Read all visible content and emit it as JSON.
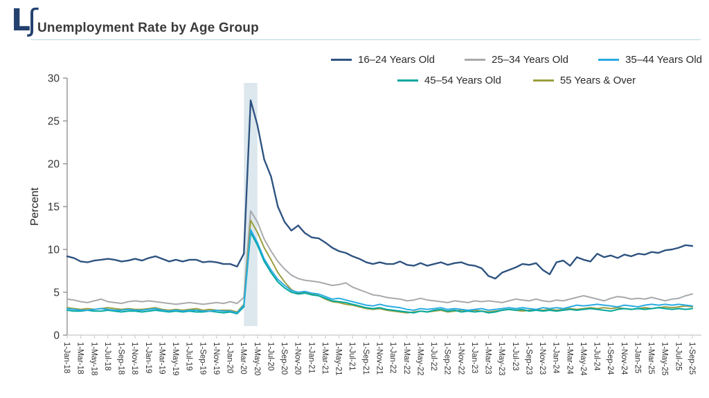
{
  "header": {
    "title": "Unemployment Rate by Age Group",
    "logo": {
      "letters": [
        "L",
        "ʃ"
      ],
      "color": "#23406e"
    }
  },
  "chart_data": {
    "type": "line",
    "title": "Unemployment Rate by Age Group",
    "xlabel": "",
    "ylabel": "Percent",
    "ylim": [
      0,
      30
    ],
    "yticks": [
      0,
      5,
      10,
      15,
      20,
      25,
      30
    ],
    "grid": false,
    "legend_position": "top-right",
    "legend_rows": [
      [
        0,
        1,
        2
      ],
      [
        3,
        4
      ]
    ],
    "n_points": 93,
    "points_per_tick": 2,
    "x_tick_labels": [
      "1-Jan-18",
      "1-Mar-18",
      "1-May-18",
      "1-Jul-18",
      "1-Sep-18",
      "1-Nov-18",
      "1-Jan-19",
      "1-Mar-19",
      "1-May-19",
      "1-Jul-19",
      "1-Sep-19",
      "1-Nov-19",
      "1-Jan-20",
      "1-Mar-20",
      "1-May-20",
      "1-Jul-20",
      "1-Sep-20",
      "1-Nov-20",
      "1-Jan-21",
      "1-Mar-21",
      "1-May-21",
      "1-Jul-21",
      "1-Sep-21",
      "1-Nov-21",
      "1-Jan-22",
      "1-Mar-22",
      "1-May-22",
      "1-Jul-22",
      "1-Sep-22",
      "1-Nov-22",
      "1-Jan-23",
      "1-Mar-23",
      "1-May-23",
      "1-Jul-23",
      "1-Sep-23",
      "1-Nov-23",
      "1-Jan-24",
      "1-Mar-24",
      "1-May-24",
      "1-Jul-24",
      "1-Sep-24",
      "1-Nov-24",
      "1-Jan-25",
      "1-Mar-25",
      "1-May-25",
      "1-Jul-25",
      "1-Sep-25"
    ],
    "recession_band": {
      "from_index": 26,
      "to_index": 28,
      "color": "#dde8ee"
    },
    "axis_colors": {
      "y_axis": "#808080",
      "x_axis": "#c8c8c8",
      "tick_label": "#333333"
    },
    "series": [
      {
        "name": "16–24 Years Old",
        "color": "#2e5380",
        "width": 2.4,
        "values": [
          9.2,
          9.0,
          8.6,
          8.5,
          8.7,
          8.8,
          8.9,
          8.8,
          8.6,
          8.7,
          8.9,
          8.7,
          9.0,
          9.2,
          8.9,
          8.6,
          8.8,
          8.6,
          8.8,
          8.8,
          8.5,
          8.6,
          8.5,
          8.3,
          8.3,
          8.0,
          9.5,
          27.4,
          24.5,
          20.5,
          18.5,
          15.0,
          13.2,
          12.2,
          12.8,
          11.9,
          11.4,
          11.3,
          10.8,
          10.2,
          9.8,
          9.6,
          9.2,
          8.9,
          8.5,
          8.3,
          8.5,
          8.3,
          8.3,
          8.6,
          8.2,
          8.1,
          8.4,
          8.1,
          8.3,
          8.5,
          8.2,
          8.4,
          8.5,
          8.2,
          8.1,
          7.8,
          6.9,
          6.6,
          7.3,
          7.6,
          7.9,
          8.3,
          8.2,
          8.4,
          7.6,
          7.1,
          8.5,
          8.7,
          8.1,
          9.1,
          8.8,
          8.6,
          9.5,
          9.1,
          9.3,
          9.0,
          9.4,
          9.2,
          9.5,
          9.4,
          9.7,
          9.6,
          9.9,
          10.0,
          10.2,
          10.5,
          10.4
        ]
      },
      {
        "name": "25–34 Years Old",
        "color": "#a7a9ac",
        "width": 2,
        "values": [
          4.2,
          4.1,
          3.9,
          3.8,
          4.0,
          4.2,
          3.9,
          3.8,
          3.7,
          3.9,
          4.0,
          3.9,
          4.0,
          3.9,
          3.8,
          3.7,
          3.6,
          3.7,
          3.8,
          3.7,
          3.6,
          3.7,
          3.8,
          3.7,
          3.9,
          3.7,
          4.4,
          14.5,
          13.2,
          11.2,
          9.8,
          8.6,
          7.7,
          7.0,
          6.6,
          6.4,
          6.3,
          6.2,
          6.0,
          5.8,
          5.9,
          6.1,
          5.6,
          5.3,
          5.0,
          4.7,
          4.6,
          4.4,
          4.3,
          4.2,
          4.0,
          4.1,
          4.3,
          4.1,
          4.0,
          3.9,
          3.8,
          4.0,
          3.9,
          3.8,
          4.0,
          3.9,
          4.0,
          3.9,
          3.8,
          4.0,
          4.2,
          4.1,
          4.0,
          4.2,
          4.0,
          3.9,
          4.1,
          4.0,
          4.2,
          4.4,
          4.6,
          4.4,
          4.2,
          4.0,
          4.3,
          4.5,
          4.4,
          4.2,
          4.3,
          4.2,
          4.4,
          4.2,
          4.0,
          4.2,
          4.3,
          4.6,
          4.8
        ]
      },
      {
        "name": "35–44 Years Old",
        "color": "#29abe2",
        "width": 2,
        "values": [
          3.1,
          3.0,
          2.9,
          2.9,
          3.0,
          3.1,
          3.0,
          2.9,
          2.9,
          3.0,
          2.9,
          2.9,
          3.0,
          3.1,
          2.9,
          2.8,
          2.9,
          2.8,
          2.9,
          2.9,
          2.8,
          2.8,
          2.9,
          2.8,
          2.8,
          2.6,
          3.5,
          12.3,
          10.8,
          8.9,
          7.6,
          6.5,
          5.8,
          5.2,
          5.0,
          5.1,
          4.9,
          4.8,
          4.5,
          4.2,
          4.3,
          4.1,
          3.9,
          3.7,
          3.5,
          3.4,
          3.6,
          3.4,
          3.3,
          3.2,
          3.0,
          2.9,
          3.1,
          3.0,
          3.1,
          3.2,
          3.0,
          3.1,
          3.0,
          2.9,
          3.0,
          3.1,
          2.9,
          3.0,
          3.1,
          3.2,
          3.1,
          3.2,
          3.1,
          3.0,
          3.2,
          3.1,
          3.2,
          3.1,
          3.3,
          3.5,
          3.4,
          3.5,
          3.6,
          3.5,
          3.4,
          3.3,
          3.5,
          3.4,
          3.3,
          3.5,
          3.6,
          3.5,
          3.6,
          3.5,
          3.6,
          3.5,
          3.4
        ]
      },
      {
        "name": "45–54 Years Old",
        "color": "#00a79d",
        "width": 2,
        "values": [
          2.9,
          2.8,
          2.8,
          2.9,
          2.8,
          2.8,
          2.9,
          2.8,
          2.7,
          2.8,
          2.8,
          2.7,
          2.8,
          2.9,
          2.8,
          2.7,
          2.8,
          2.7,
          2.8,
          2.7,
          2.7,
          2.8,
          2.7,
          2.6,
          2.7,
          2.5,
          3.3,
          12.0,
          10.5,
          8.6,
          7.3,
          6.2,
          5.5,
          5.0,
          4.8,
          4.9,
          4.7,
          4.6,
          4.3,
          4.0,
          3.9,
          3.8,
          3.6,
          3.4,
          3.2,
          3.1,
          3.2,
          3.0,
          2.9,
          2.8,
          2.7,
          2.6,
          2.8,
          2.7,
          2.9,
          3.0,
          2.8,
          2.9,
          2.7,
          2.8,
          2.7,
          2.8,
          2.6,
          2.7,
          2.9,
          3.0,
          2.9,
          3.0,
          2.8,
          2.9,
          2.8,
          2.9,
          2.8,
          2.9,
          3.0,
          2.9,
          3.0,
          3.1,
          3.0,
          2.9,
          2.8,
          3.0,
          3.1,
          3.0,
          3.1,
          3.0,
          3.1,
          3.2,
          3.1,
          3.0,
          3.1,
          3.0,
          3.1
        ]
      },
      {
        "name": "55 Years & Over",
        "color": "#9b9e3e",
        "width": 2,
        "values": [
          3.2,
          3.1,
          3.0,
          3.1,
          3.0,
          3.1,
          3.2,
          3.1,
          3.0,
          3.1,
          3.0,
          3.0,
          3.1,
          3.2,
          3.0,
          2.9,
          3.0,
          2.9,
          3.0,
          3.1,
          2.9,
          3.0,
          2.9,
          2.9,
          2.9,
          2.7,
          3.6,
          13.4,
          12.0,
          10.2,
          8.8,
          7.3,
          6.2,
          5.3,
          4.9,
          5.0,
          4.8,
          4.6,
          4.2,
          3.9,
          3.8,
          3.6,
          3.5,
          3.3,
          3.1,
          3.0,
          3.1,
          2.9,
          2.8,
          2.7,
          2.6,
          2.7,
          2.8,
          2.7,
          2.8,
          2.9,
          2.7,
          2.8,
          2.9,
          2.8,
          2.9,
          2.8,
          2.7,
          2.8,
          2.9,
          3.0,
          2.9,
          2.8,
          2.9,
          3.0,
          2.9,
          3.0,
          2.9,
          3.0,
          3.1,
          3.0,
          3.1,
          3.2,
          3.1,
          3.2,
          3.1,
          3.2,
          3.1,
          3.0,
          3.1,
          3.2,
          3.1,
          3.2,
          3.3,
          3.2,
          3.3,
          3.4,
          3.3
        ]
      }
    ]
  }
}
